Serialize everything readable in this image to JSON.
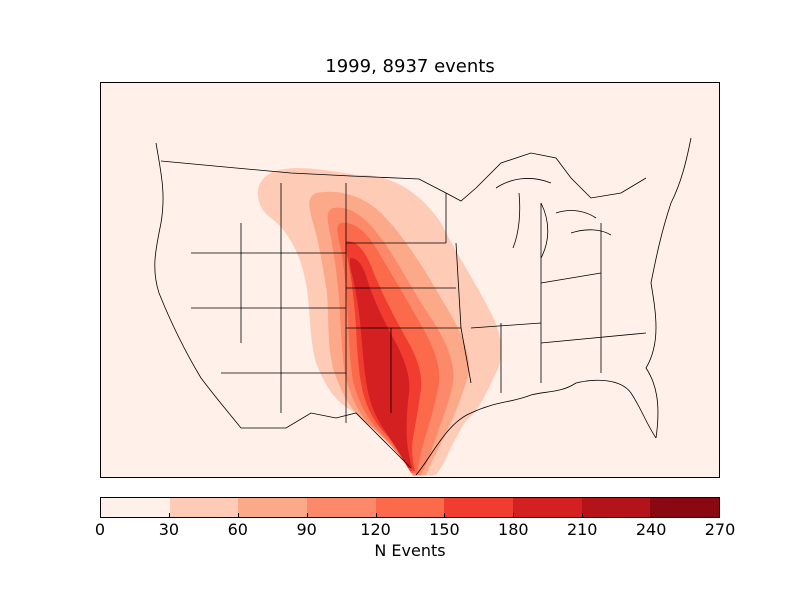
{
  "title": "1999, 8937 events",
  "colorbar": {
    "label": "N Events",
    "ticks": [
      "0",
      "30",
      "60",
      "90",
      "120",
      "150",
      "180",
      "210",
      "240",
      "270"
    ],
    "colors": [
      "#fff0e9",
      "#fdcbb6",
      "#fca98a",
      "#fc8a6a",
      "#fb6a4a",
      "#f03d30",
      "#d42020",
      "#b5131a",
      "#8a0812"
    ]
  },
  "icons": {
    "map": "contour-map-icon"
  }
}
